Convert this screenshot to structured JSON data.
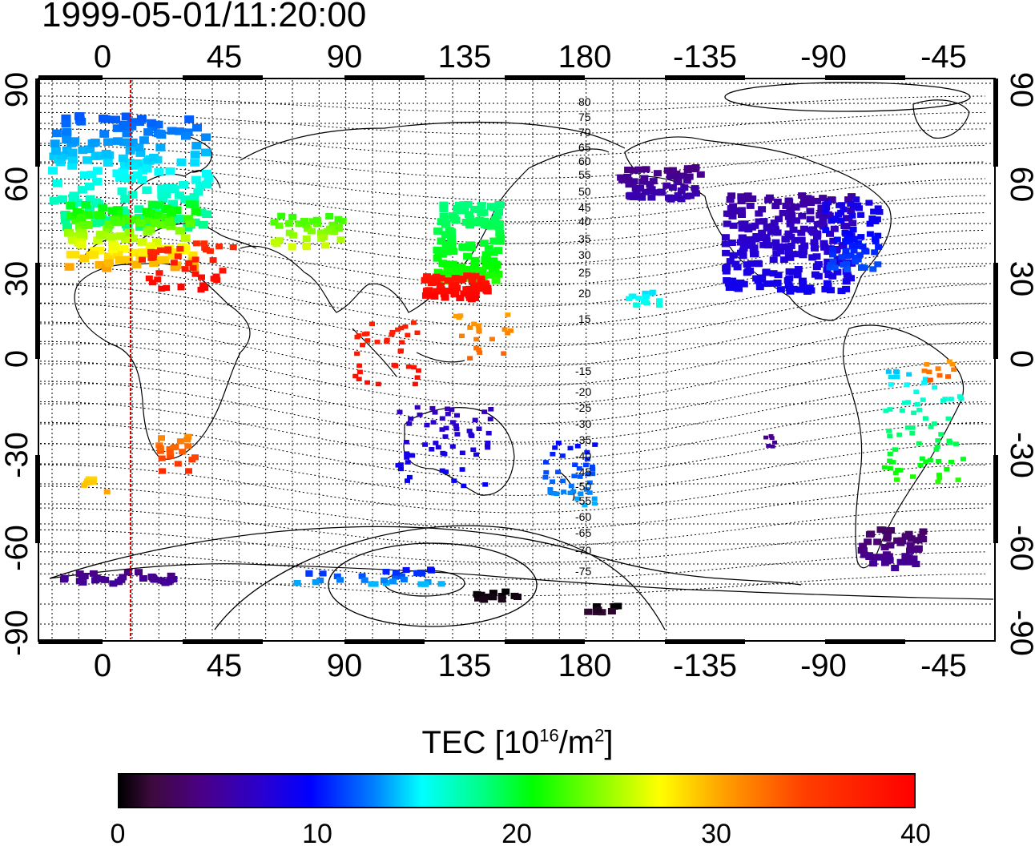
{
  "title": "1999-05-01/11:20:00",
  "top_axis_labels": [
    "0",
    "45",
    "90",
    "135",
    "180",
    "-135",
    "-90",
    "-45"
  ],
  "bottom_axis_labels": [
    "0",
    "45",
    "90",
    "135",
    "180",
    "-135",
    "-90",
    "-45"
  ],
  "left_axis_labels": [
    "90",
    "60",
    "30",
    "0",
    "-30",
    "-60",
    "-90"
  ],
  "right_axis_labels": [
    "90",
    "60",
    "30",
    "0",
    "-30",
    "-60",
    "-90"
  ],
  "contour_labels_north": [
    "80",
    "75",
    "70",
    "65",
    "60",
    "55",
    "50",
    "45",
    "40",
    "35",
    "30",
    "25",
    "20",
    "15"
  ],
  "contour_labels_south": [
    "-15",
    "-20",
    "-25",
    "-30",
    "-35",
    "-40",
    "-45",
    "-50",
    "-55",
    "-60",
    "-65",
    "-70",
    "-75"
  ],
  "colorbar": {
    "title_prefix": "TEC  [10",
    "title_sup1": "16",
    "title_mid": "/m",
    "title_sup2": "2",
    "title_suffix": "]",
    "tick_labels": [
      "0",
      "10",
      "20",
      "30",
      "40"
    ],
    "range": [
      0,
      40
    ]
  },
  "colors": {
    "terminator_line": "#e00000",
    "grid": "#000000",
    "coastline": "#000000"
  }
}
